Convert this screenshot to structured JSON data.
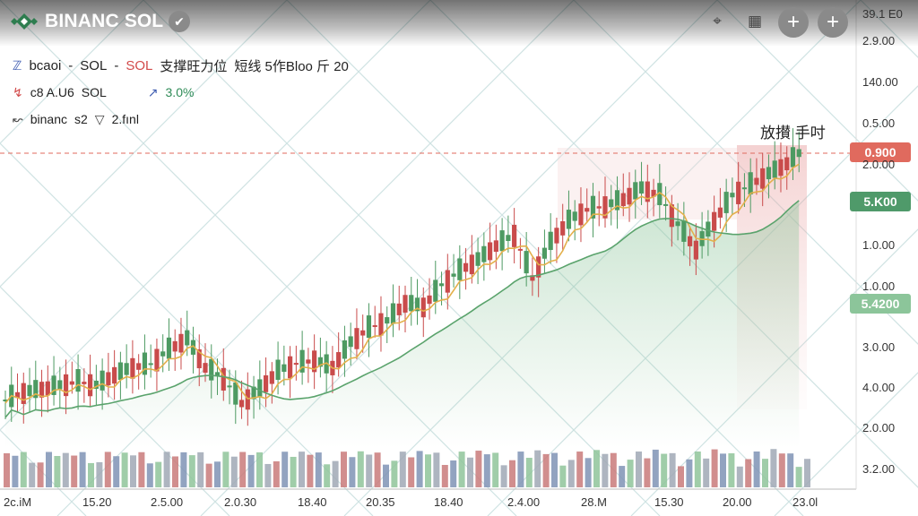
{
  "header": {
    "brand": "BINANC",
    "symbol": "SOL",
    "verified_icon": "verified-check-icon",
    "tools": [
      {
        "icon": "crosshair-icon",
        "glyph": "⌖"
      },
      {
        "icon": "layout-grid-icon",
        "glyph": "▦"
      },
      {
        "icon": "plus-icon",
        "glyph": "+"
      },
      {
        "icon": "plus-icon",
        "glyph": "+"
      }
    ]
  },
  "legend": {
    "row1_prefix": "bcaoi",
    "row1_sep1": "-",
    "row1_symbol": "SOL",
    "row1_sep2": "-",
    "row1_symbol_red": "SOL",
    "row1_title": "支撑旺力位",
    "row1_extra": "短线 5作Bloo 斤 20",
    "row2_a": "c8 A.U6",
    "row2_b": "SOL",
    "row2_change": "3.0%",
    "row3_a": "binanc",
    "row3_b": "s2",
    "row3_c": "2.fınl"
  },
  "annotation": "放攅 手吋",
  "price_tags": [
    {
      "label": "0.900",
      "color": "#e06a5e"
    },
    {
      "label": "5.K00",
      "color": "#4f9a6a"
    },
    {
      "label": "5.4200",
      "color": "#8cc59a"
    }
  ],
  "y_axis_labels": [
    "39.1 E0",
    "2.9.00",
    "140.00",
    "0.5.00",
    "2.0.00",
    "1.0.00",
    "1.0.00",
    "3.0.00",
    "4.0.00",
    "2.0.00",
    "3.2.00"
  ],
  "x_axis_labels": [
    "2c.iM",
    "15.20",
    "2.5.00",
    "2.0.30",
    "18.40",
    "20.35",
    "18.40",
    "2.4.00",
    "28.M",
    "15.30",
    "20.00",
    "23.0l"
  ],
  "chart_data": {
    "type": "candlestick",
    "colors": {
      "up": "#4d9a62",
      "down": "#c94b4b",
      "ma_fast": "#e3b04b",
      "ma_slow": "#5aa36c",
      "support_line": "#e06a5e"
    },
    "series": [
      {
        "name": "price_close_approx",
        "values": [
          2.6,
          2.8,
          2.9,
          3.0,
          3.1,
          3.0,
          3.3,
          3.5,
          3.6,
          4.0,
          4.3,
          3.5,
          3.2,
          2.5,
          2.9,
          3.4,
          3.6,
          3.7,
          3.5,
          4.2,
          4.6,
          4.8,
          5.3,
          5.2,
          5.8,
          6.2,
          6.5,
          6.9,
          7.2,
          6.0,
          7.0,
          7.6,
          7.9,
          8.0,
          8.2,
          8.5,
          8.3,
          7.5,
          6.8,
          7.6,
          8.3,
          8.6,
          8.9,
          9.2,
          9.6
        ]
      }
    ]
  }
}
